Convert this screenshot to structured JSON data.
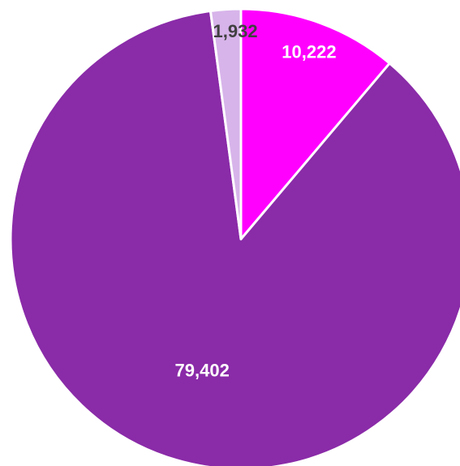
{
  "chart_data": {
    "type": "pie",
    "title": "",
    "start_angle_deg": 0,
    "direction": "clockwise",
    "slices": [
      {
        "value": 10222,
        "label": "10,222",
        "color": "#FF00FF",
        "label_color": "#FFFFFF"
      },
      {
        "value": 79402,
        "label": "79,402",
        "color": "#8A2BA8",
        "label_color": "#FFFFFF"
      },
      {
        "value": 1932,
        "label": "1,932",
        "color": "#D7B4EA",
        "label_color": "#404040"
      }
    ],
    "legend": "none"
  }
}
